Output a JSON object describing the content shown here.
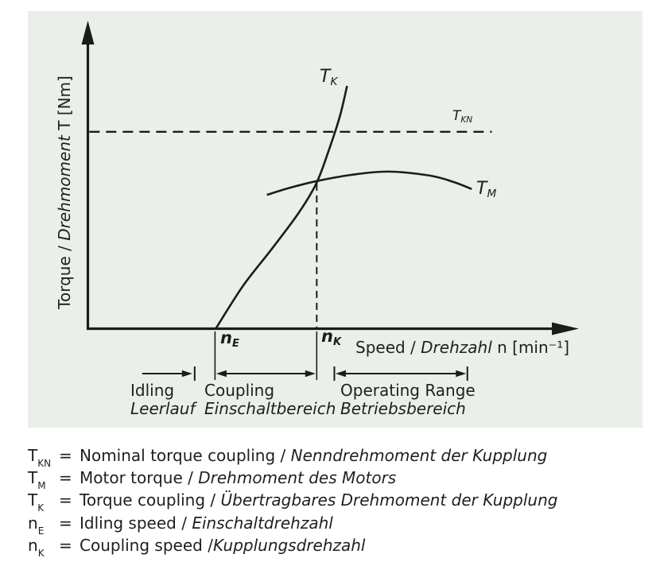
{
  "figure": {
    "panel_bg": "#eaefe9",
    "line_color": "#1c1c1c",
    "text_color": "#1f1f1f"
  },
  "axes": {
    "y_label_pre": "Torque / ",
    "y_label_italic": "Drehmoment",
    "y_label_post": " T [Nm]",
    "x_label_pre": "Speed / ",
    "x_label_italic": "Drehzahl",
    "x_label_post": " n [min⁻¹]"
  },
  "curve_labels": {
    "tk": {
      "base": "T",
      "sub": "K"
    },
    "tkn": {
      "base": "T",
      "sub": "KN"
    },
    "tm": {
      "base": "T",
      "sub": "M"
    },
    "ne": {
      "base": "n",
      "sub": "E"
    },
    "nk": {
      "base": "n",
      "sub": "K"
    }
  },
  "ranges": [
    {
      "en": "Idling",
      "de": "Leerlauf"
    },
    {
      "en": "Coupling",
      "de": "Einschaltbereich"
    },
    {
      "en": "Operating Range",
      "de": "Betriebsbereich"
    }
  ],
  "legend": [
    {
      "sym": "T",
      "sub": "KN",
      "eq": "=",
      "en": "Nominal torque coupling / ",
      "de": "Nenndrehmoment der Kupplung"
    },
    {
      "sym": "T",
      "sub": "M",
      "eq": "=",
      "en": "Motor torque / ",
      "de": "Drehmoment des Motors"
    },
    {
      "sym": "T",
      "sub": "K",
      "eq": "=",
      "en": "Torque coupling / ",
      "de": "Übertragbares Drehmoment der Kupplung"
    },
    {
      "sym": "n",
      "sub": "E",
      "eq": "=",
      "en": "Idling speed / ",
      "de": "Einschaltdrehzahl"
    },
    {
      "sym": "n",
      "sub": "K",
      "eq": "=",
      "en": "Coupling speed /",
      "de": "Kupplungsdrehzahl"
    }
  ],
  "chart_data": {
    "type": "line",
    "qualitative": true,
    "title": "",
    "xlabel": "Speed / Drehzahl n [min⁻¹]",
    "ylabel": "Torque / Drehmoment T [Nm]",
    "axis_numeric_labels": false,
    "grid": false,
    "series": [
      {
        "name": "T_K",
        "label": "Torque coupling / Übertragbares Drehmoment der Kupplung",
        "style": "solid",
        "points_rel": [
          [
            0.262,
            0.0
          ],
          [
            0.317,
            0.138
          ],
          [
            0.374,
            0.255
          ],
          [
            0.431,
            0.377
          ],
          [
            0.467,
            0.473
          ],
          [
            0.491,
            0.574
          ],
          [
            0.515,
            0.691
          ],
          [
            0.53,
            0.792
          ]
        ]
      },
      {
        "name": "T_M",
        "label": "Motor torque / Drehmoment des Motors",
        "style": "solid",
        "points_rel": [
          [
            0.366,
            0.436
          ],
          [
            0.415,
            0.46
          ],
          [
            0.468,
            0.481
          ],
          [
            0.537,
            0.501
          ],
          [
            0.613,
            0.512
          ],
          [
            0.699,
            0.499
          ],
          [
            0.748,
            0.478
          ],
          [
            0.785,
            0.455
          ]
        ]
      },
      {
        "name": "T_KN",
        "label": "Nominal torque coupling / Nenndrehmoment der Kupplung",
        "style": "dashed",
        "points_rel": [
          [
            0.003,
            0.642
          ],
          [
            0.826,
            0.642
          ]
        ]
      }
    ],
    "x_markers": [
      {
        "name": "n_E",
        "x_rel": 0.26
      },
      {
        "name": "n_K",
        "x_rel": 0.468,
        "dashed_drop_from_rel": 0.473
      }
    ],
    "ranges_rel": [
      {
        "label": "Idling / Leerlauf",
        "from": 0.111,
        "to": 0.216,
        "left_arrow": false,
        "end_ticks": "right-short"
      },
      {
        "label": "Coupling / Einschaltbereich",
        "from": 0.26,
        "to": 0.468,
        "left_arrow": true,
        "end_ticks": "extension-lines"
      },
      {
        "label": "Operating Range / Betriebsbereich",
        "from": 0.504,
        "to": 0.776,
        "left_arrow": true,
        "end_ticks": "both-short"
      }
    ]
  }
}
